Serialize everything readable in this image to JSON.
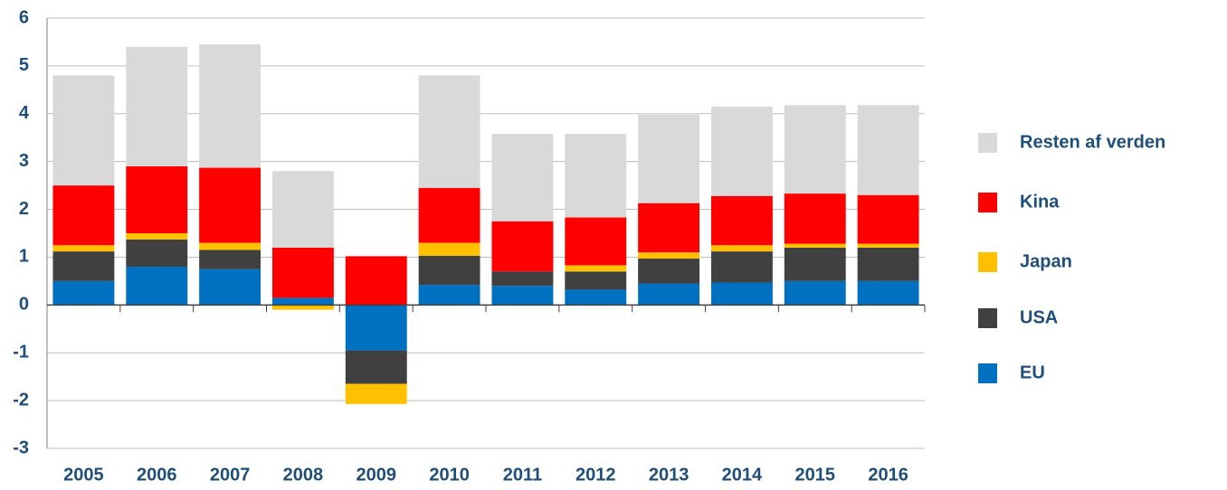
{
  "chart_data": {
    "type": "stacked_bar",
    "categories": [
      "2005",
      "2006",
      "2007",
      "2008",
      "2009",
      "2010",
      "2011",
      "2012",
      "2013",
      "2014",
      "2015",
      "2016"
    ],
    "series": [
      {
        "name": "EU",
        "color": "#0070c0",
        "values": [
          0.5,
          0.8,
          0.75,
          0.15,
          -0.95,
          0.42,
          0.4,
          0.32,
          0.45,
          0.47,
          0.5,
          0.5
        ]
      },
      {
        "name": "USA",
        "color": "#404040",
        "values": [
          0.62,
          0.57,
          0.4,
          0,
          -0.7,
          0.61,
          0.3,
          0.38,
          0.52,
          0.65,
          0.7,
          0.7
        ]
      },
      {
        "name": "Japan",
        "color": "#ffc000",
        "values": [
          0.13,
          0.13,
          0.15,
          -0.1,
          -0.42,
          0.27,
          0,
          0.13,
          0.13,
          0.13,
          0.08,
          0.08
        ]
      },
      {
        "name": "Kina",
        "color": "#ff0000",
        "values": [
          1.25,
          1.4,
          1.57,
          1.05,
          1.02,
          1.15,
          1.05,
          1.0,
          1.03,
          1.03,
          1.05,
          1.02
        ]
      },
      {
        "name": "Resten af verden",
        "color": "#d9d9d9",
        "values": [
          2.3,
          2.5,
          2.58,
          1.6,
          0,
          2.35,
          1.83,
          1.75,
          1.85,
          1.87,
          1.85,
          1.88
        ]
      }
    ],
    "ylim": [
      -3,
      6
    ],
    "yticks": [
      -3,
      -2,
      -1,
      0,
      1,
      2,
      3,
      4,
      5,
      6
    ],
    "grid": true,
    "legend": "right"
  }
}
